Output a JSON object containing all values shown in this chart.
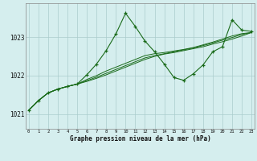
{
  "title": "Graphe pression niveau de la mer (hPa)",
  "bg_color": "#d5eeee",
  "grid_color": "#aacccc",
  "line_color": "#1a6b1a",
  "xlim": [
    -0.3,
    23.3
  ],
  "ylim": [
    1020.62,
    1023.88
  ],
  "yticks": [
    1021,
    1022,
    1023
  ],
  "xticks": [
    0,
    1,
    2,
    3,
    4,
    5,
    6,
    7,
    8,
    9,
    10,
    11,
    12,
    13,
    14,
    15,
    16,
    17,
    18,
    19,
    20,
    21,
    22,
    23
  ],
  "hours": [
    0,
    1,
    2,
    3,
    4,
    5,
    6,
    7,
    8,
    9,
    10,
    11,
    12,
    13,
    14,
    15,
    16,
    17,
    18,
    19,
    20,
    21,
    22,
    23
  ],
  "pressure_main": [
    1021.1,
    1021.35,
    1021.55,
    1021.65,
    1021.72,
    1021.78,
    1022.02,
    1022.3,
    1022.65,
    1023.08,
    1023.62,
    1023.28,
    1022.9,
    1022.62,
    1022.3,
    1021.95,
    1021.88,
    1022.05,
    1022.28,
    1022.62,
    1022.75,
    1023.45,
    1023.18,
    1023.15
  ],
  "pressure_line2": [
    1021.1,
    1021.35,
    1021.55,
    1021.65,
    1021.72,
    1021.78,
    1021.85,
    1021.93,
    1022.02,
    1022.12,
    1022.22,
    1022.32,
    1022.42,
    1022.5,
    1022.56,
    1022.6,
    1022.65,
    1022.7,
    1022.75,
    1022.82,
    1022.88,
    1022.95,
    1023.03,
    1023.12
  ],
  "pressure_line3": [
    1021.1,
    1021.35,
    1021.55,
    1021.65,
    1021.72,
    1021.78,
    1021.87,
    1021.96,
    1022.06,
    1022.16,
    1022.26,
    1022.36,
    1022.46,
    1022.52,
    1022.57,
    1022.62,
    1022.67,
    1022.72,
    1022.78,
    1022.85,
    1022.92,
    1022.99,
    1023.07,
    1023.12
  ],
  "pressure_line4": [
    1021.1,
    1021.35,
    1021.55,
    1021.65,
    1021.72,
    1021.78,
    1021.9,
    1022.0,
    1022.12,
    1022.22,
    1022.32,
    1022.42,
    1022.52,
    1022.57,
    1022.6,
    1022.64,
    1022.68,
    1022.73,
    1022.8,
    1022.87,
    1022.95,
    1023.03,
    1023.09,
    1023.12
  ]
}
